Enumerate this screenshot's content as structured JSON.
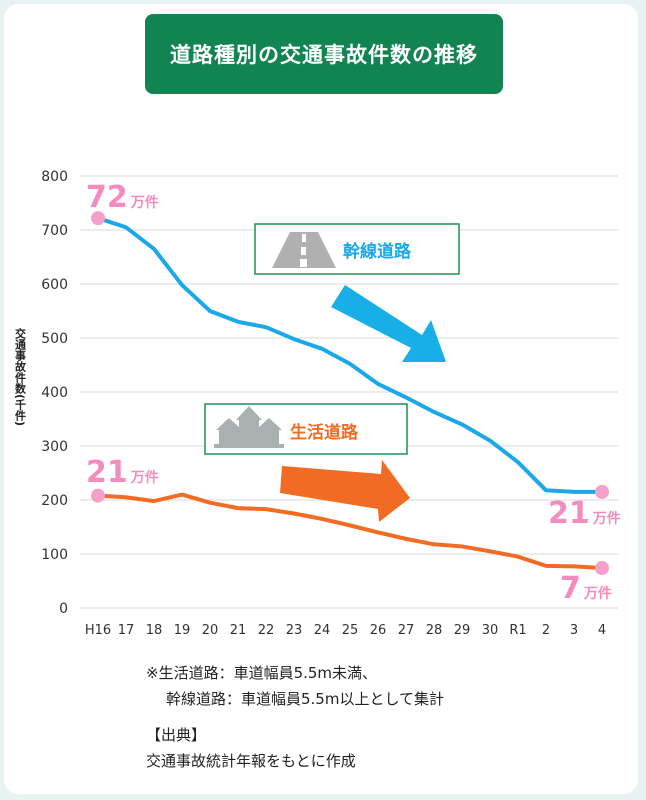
{
  "chart_data": {
    "type": "line",
    "title": "道路種別の交通事故件数の推移",
    "ylabel": "交通事故件数(千件)",
    "ylim": [
      0,
      800
    ],
    "y_ticks": [
      "0",
      "100",
      "200",
      "300",
      "400",
      "500",
      "600",
      "700",
      "800"
    ],
    "categories": [
      "H16",
      "17",
      "18",
      "19",
      "20",
      "21",
      "22",
      "23",
      "24",
      "25",
      "26",
      "27",
      "28",
      "29",
      "30",
      "R1",
      "2",
      "3",
      "4"
    ],
    "series": [
      {
        "name": "幹線道路",
        "color": "#1aa8e8",
        "values": [
          722,
          705,
          665,
          598,
          550,
          530,
          520,
          498,
          480,
          452,
          415,
          390,
          363,
          340,
          310,
          270,
          218,
          215,
          215
        ]
      },
      {
        "name": "生活道路",
        "color": "#f26b22",
        "values": [
          208,
          205,
          198,
          210,
          195,
          185,
          183,
          175,
          165,
          153,
          140,
          128,
          118,
          114,
          105,
          95,
          78,
          77,
          74
        ]
      }
    ],
    "annotations": {
      "trunk_start": {
        "num": "72",
        "unit": "万件"
      },
      "life_start": {
        "num": "21",
        "unit": "万件"
      },
      "trunk_end": {
        "num": "21",
        "unit": "万件"
      },
      "life_end": {
        "num": "7",
        "unit": "万件"
      }
    },
    "marker_color": "#f4a0c8",
    "label_color": "#f48cbf"
  },
  "notes": {
    "line1": "※生活道路：車道幅員5.5m未満、",
    "line2": "幹線道路：車道幅員5.5m以上として集計",
    "source_head": "【出典】",
    "source_body": "交通事故統計年報をもとに作成"
  }
}
